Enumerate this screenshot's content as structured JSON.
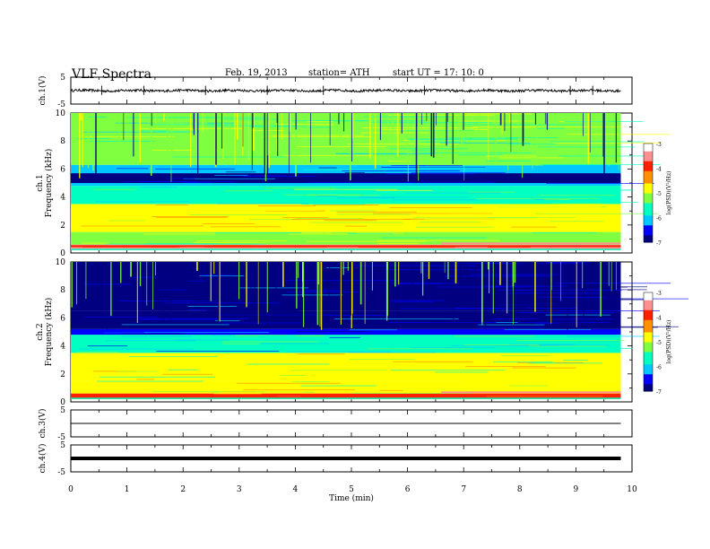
{
  "header": {
    "title": "VLF  Spectra",
    "date": "Feb. 19, 2013",
    "station": "station= ATH",
    "start_ut": "start  UT =   17: 10: 0"
  },
  "colors": {
    "colormap": [
      "#000080",
      "#0000ff",
      "#00c8ff",
      "#00ffc0",
      "#80ff40",
      "#ffff00",
      "#ff9000",
      "#ff2000",
      "#ff9090",
      "#ffffff"
    ],
    "trace": "#000000"
  },
  "chart_data": [
    {
      "type": "line",
      "panel": "ch1-waveform",
      "ylabel": "ch.1(V)",
      "ylim": [
        -5,
        5
      ],
      "yticks": [
        "5",
        "-5"
      ],
      "x": [
        0,
        1,
        2,
        3,
        4,
        5,
        6,
        7,
        8,
        9,
        9.8
      ],
      "y": [
        0,
        0,
        0,
        0,
        0,
        0,
        0,
        0,
        0,
        0,
        0
      ],
      "spikes_x": [
        0.55,
        1.3,
        2.4,
        3.5,
        4.5,
        6.3,
        8.9,
        9.3
      ]
    },
    {
      "type": "heatmap",
      "panel": "ch1-spectrogram",
      "ylabel": "ch.1\nFrequency  (kHz)",
      "ylim": [
        0,
        10
      ],
      "yticks": [
        "0",
        "2",
        "4",
        "6",
        "8",
        "10"
      ],
      "x_range": [
        0,
        9.8
      ],
      "colorbar_label": "log(PSD)(V²/Hz)",
      "colorbar_range": [
        -7,
        -3
      ],
      "colorbar_ticks": [
        "-3",
        "-4",
        "-5",
        "-6",
        "-7"
      ],
      "bands": [
        {
          "f_from": 0.2,
          "f_to": 0.6,
          "level": -3.6
        },
        {
          "f_from": 0.6,
          "f_to": 1.5,
          "level": -5.2
        },
        {
          "f_from": 1.5,
          "f_to": 3.5,
          "level": -4.8
        },
        {
          "f_from": 3.5,
          "f_to": 4.8,
          "level": -5.6
        },
        {
          "f_from": 4.8,
          "f_to": 5.0,
          "level": -6.3
        },
        {
          "f_from": 5.0,
          "f_to": 5.7,
          "level": -6.9
        },
        {
          "f_from": 5.7,
          "f_to": 6.3,
          "level": -6.2
        },
        {
          "f_from": 6.3,
          "f_to": 10.0,
          "level": -5.3
        }
      ]
    },
    {
      "type": "heatmap",
      "panel": "ch2-spectrogram",
      "ylabel": "ch.2\nFrequency  (kHz)",
      "ylim": [
        0,
        10
      ],
      "yticks": [
        "0",
        "2",
        "4",
        "6",
        "8",
        "10"
      ],
      "x_range": [
        0,
        9.8
      ],
      "colorbar_label": "log(PSD)(V²/Hz)",
      "colorbar_range": [
        -7,
        -3
      ],
      "colorbar_ticks": [
        "-3",
        "-4",
        "-5",
        "-6",
        "-7"
      ],
      "bands": [
        {
          "f_from": 0.2,
          "f_to": 0.6,
          "level": -3.8
        },
        {
          "f_from": 0.6,
          "f_to": 1.5,
          "level": -5.0
        },
        {
          "f_from": 1.5,
          "f_to": 3.5,
          "level": -5.0
        },
        {
          "f_from": 3.5,
          "f_to": 4.8,
          "level": -5.8
        },
        {
          "f_from": 4.8,
          "f_to": 5.2,
          "level": -6.4
        },
        {
          "f_from": 5.2,
          "f_to": 6.5,
          "level": -6.8
        },
        {
          "f_from": 6.5,
          "f_to": 10.0,
          "level": -6.9
        }
      ]
    },
    {
      "type": "line",
      "panel": "ch3-waveform",
      "ylabel": "ch.3(V)",
      "ylim": [
        -5,
        5
      ],
      "yticks": [
        "5",
        "-5"
      ],
      "x": [
        0,
        9.8
      ],
      "y": [
        0,
        0
      ]
    },
    {
      "type": "line",
      "panel": "ch4-waveform",
      "ylabel": "ch.4(V)",
      "ylim": [
        -5,
        5
      ],
      "yticks": [
        "5",
        "-5"
      ],
      "x": [
        0,
        9.8
      ],
      "y": [
        0,
        0
      ]
    }
  ],
  "x_axis": {
    "label": "Time  (min)",
    "range": [
      0,
      10
    ],
    "ticks": [
      "0",
      "1",
      "2",
      "3",
      "4",
      "5",
      "6",
      "7",
      "8",
      "9",
      "10"
    ]
  }
}
